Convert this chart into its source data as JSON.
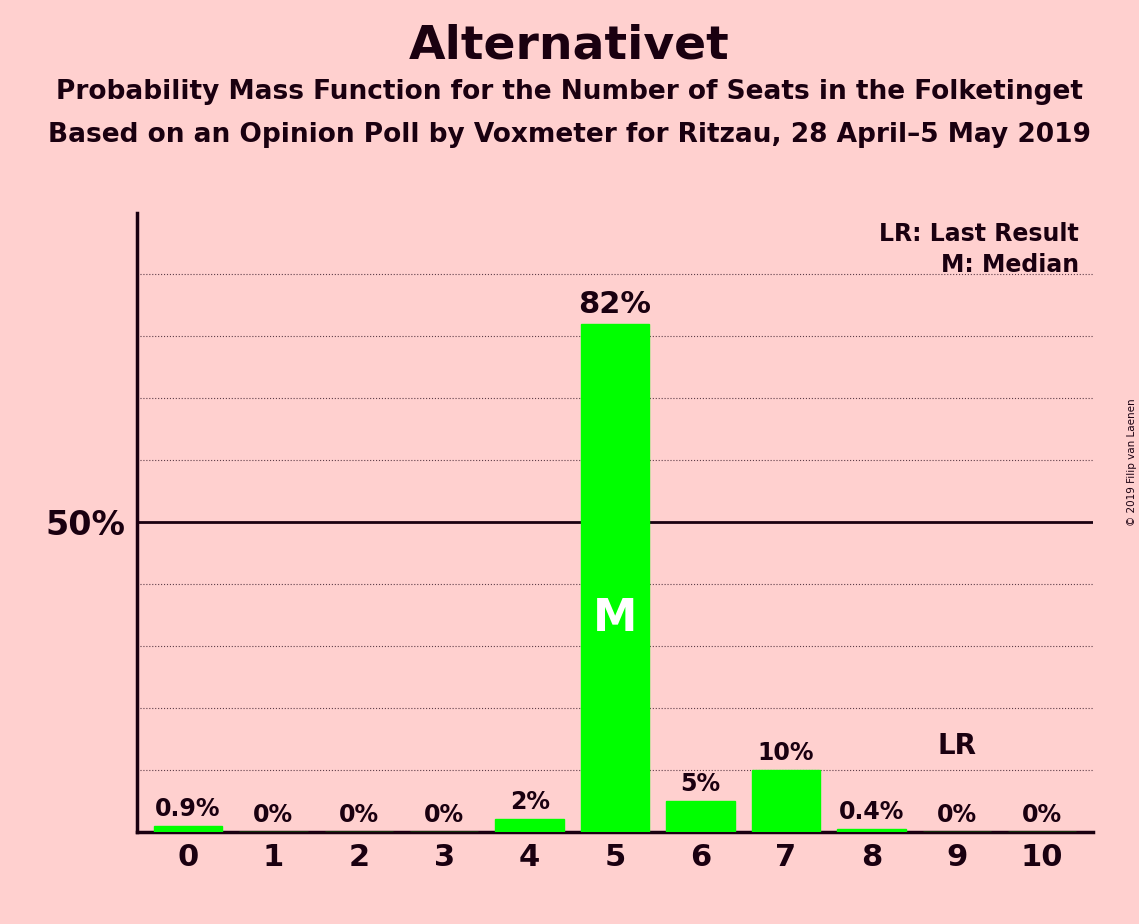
{
  "title": "Alternativet",
  "subtitle1": "Probability Mass Function for the Number of Seats in the Folketinget",
  "subtitle2": "Based on an Opinion Poll by Voxmeter for Ritzau, 28 April–5 May 2019",
  "copyright": "© 2019 Filip van Laenen",
  "seats": [
    0,
    1,
    2,
    3,
    4,
    5,
    6,
    7,
    8,
    9,
    10
  ],
  "probabilities": [
    0.9,
    0.0,
    0.0,
    0.0,
    2.0,
    82.0,
    5.0,
    10.0,
    0.4,
    0.0,
    0.0
  ],
  "bar_color": "#00FF00",
  "background_color": "#FFD0CF",
  "text_color": "#1a0010",
  "title_fontsize": 34,
  "subtitle_fontsize": 19,
  "median_seat": 5,
  "last_result_seat": 9,
  "ylim": [
    0,
    100
  ],
  "fifty_line": 50,
  "lr_label": "LR: Last Result",
  "m_label": "M: Median",
  "label_fontsize_small": 17,
  "label_fontsize_large": 22,
  "ytick_fontsize": 24,
  "xtick_fontsize": 22
}
